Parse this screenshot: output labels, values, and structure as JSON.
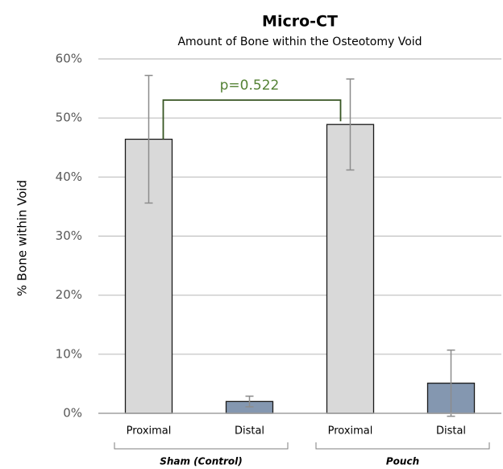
{
  "chart_data": {
    "type": "bar",
    "title": "Micro-CT",
    "subtitle": "Amount of Bone within the Osteotomy Void",
    "y_label": "% Bone within Void",
    "categories": [
      "Proximal",
      "Distal",
      "Proximal",
      "Distal"
    ],
    "groups": [
      "Sham (Control)",
      "Pouch"
    ],
    "values": [
      46.4,
      2.0,
      48.9,
      5.1
    ],
    "errors": [
      10.8,
      0.9,
      7.7,
      5.6
    ],
    "colors": [
      "#d9d9d9",
      "#8497b0",
      "#d9d9d9",
      "#8497b0"
    ],
    "error_color": "#8c8c8c",
    "ylim": [
      0,
      60
    ],
    "yticks": [
      {
        "value": 0,
        "label": "0%"
      },
      {
        "value": 10,
        "label": "10%"
      },
      {
        "value": 20,
        "label": "20%"
      },
      {
        "value": 30,
        "label": "30%"
      },
      {
        "value": 40,
        "label": "40%"
      },
      {
        "value": 50,
        "label": "50%"
      },
      {
        "value": 60,
        "label": "60%"
      }
    ],
    "grid": true,
    "annotation": {
      "text": "p=0.522",
      "color": "#548235",
      "between": [
        0,
        2
      ]
    }
  }
}
